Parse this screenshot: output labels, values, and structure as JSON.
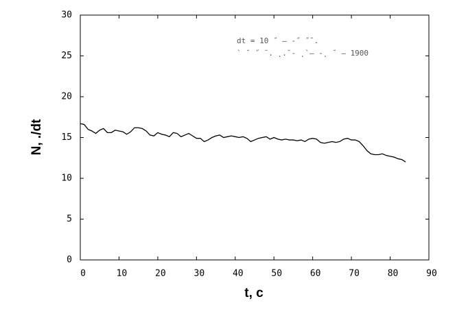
{
  "chart_data": {
    "type": "line",
    "xlabel": "t, c",
    "ylabel": "N,   ./dt",
    "annotations": [
      "dt = 10  ˝  –   -˝      ˝˘.",
      "`   ˘  ˝        ˘.  ˛.˘-  ˛`–    -˛ ˘ – 1900"
    ],
    "x": [
      0,
      1,
      2,
      3,
      4,
      5,
      6,
      7,
      8,
      9,
      10,
      11,
      12,
      13,
      14,
      15,
      16,
      17,
      18,
      19,
      20,
      21,
      22,
      23,
      24,
      25,
      26,
      27,
      28,
      29,
      30,
      31,
      32,
      33,
      34,
      35,
      36,
      37,
      38,
      39,
      40,
      41,
      42,
      43,
      44,
      45,
      46,
      47,
      48,
      49,
      50,
      51,
      52,
      53,
      54,
      55,
      56,
      57,
      58,
      59,
      60,
      61,
      62,
      63,
      64,
      65,
      66,
      67,
      68,
      69,
      70,
      71,
      72,
      73,
      74,
      75,
      76,
      77,
      78,
      79,
      80,
      81,
      82,
      83,
      84
    ],
    "series": [
      {
        "color": "#000000",
        "values": [
          16.7,
          16.6,
          16.0,
          15.8,
          15.5,
          15.9,
          16.1,
          15.6,
          15.6,
          15.9,
          15.8,
          15.7,
          15.4,
          15.7,
          16.2,
          16.2,
          16.1,
          15.8,
          15.3,
          15.2,
          15.6,
          15.4,
          15.3,
          15.1,
          15.6,
          15.5,
          15.1,
          15.3,
          15.5,
          15.2,
          14.9,
          14.9,
          14.5,
          14.7,
          15.0,
          15.2,
          15.3,
          15.0,
          15.1,
          15.2,
          15.1,
          15.0,
          15.1,
          14.9,
          14.5,
          14.7,
          14.9,
          15.0,
          15.1,
          14.8,
          15.0,
          14.8,
          14.7,
          14.8,
          14.7,
          14.7,
          14.6,
          14.7,
          14.5,
          14.8,
          14.9,
          14.8,
          14.4,
          14.3,
          14.4,
          14.5,
          14.4,
          14.5,
          14.8,
          14.9,
          14.7,
          14.7,
          14.5,
          14.0,
          13.4,
          13.0,
          12.9,
          12.9,
          13.0,
          12.8,
          12.7,
          12.6,
          12.4,
          12.3,
          12.0
        ]
      }
    ],
    "xlim": [
      0,
      90
    ],
    "xticks": [
      0,
      10,
      20,
      30,
      40,
      50,
      60,
      70,
      80,
      90
    ],
    "ylim": [
      0,
      30
    ],
    "yticks": [
      0,
      5,
      10,
      15,
      20,
      25,
      30
    ]
  }
}
